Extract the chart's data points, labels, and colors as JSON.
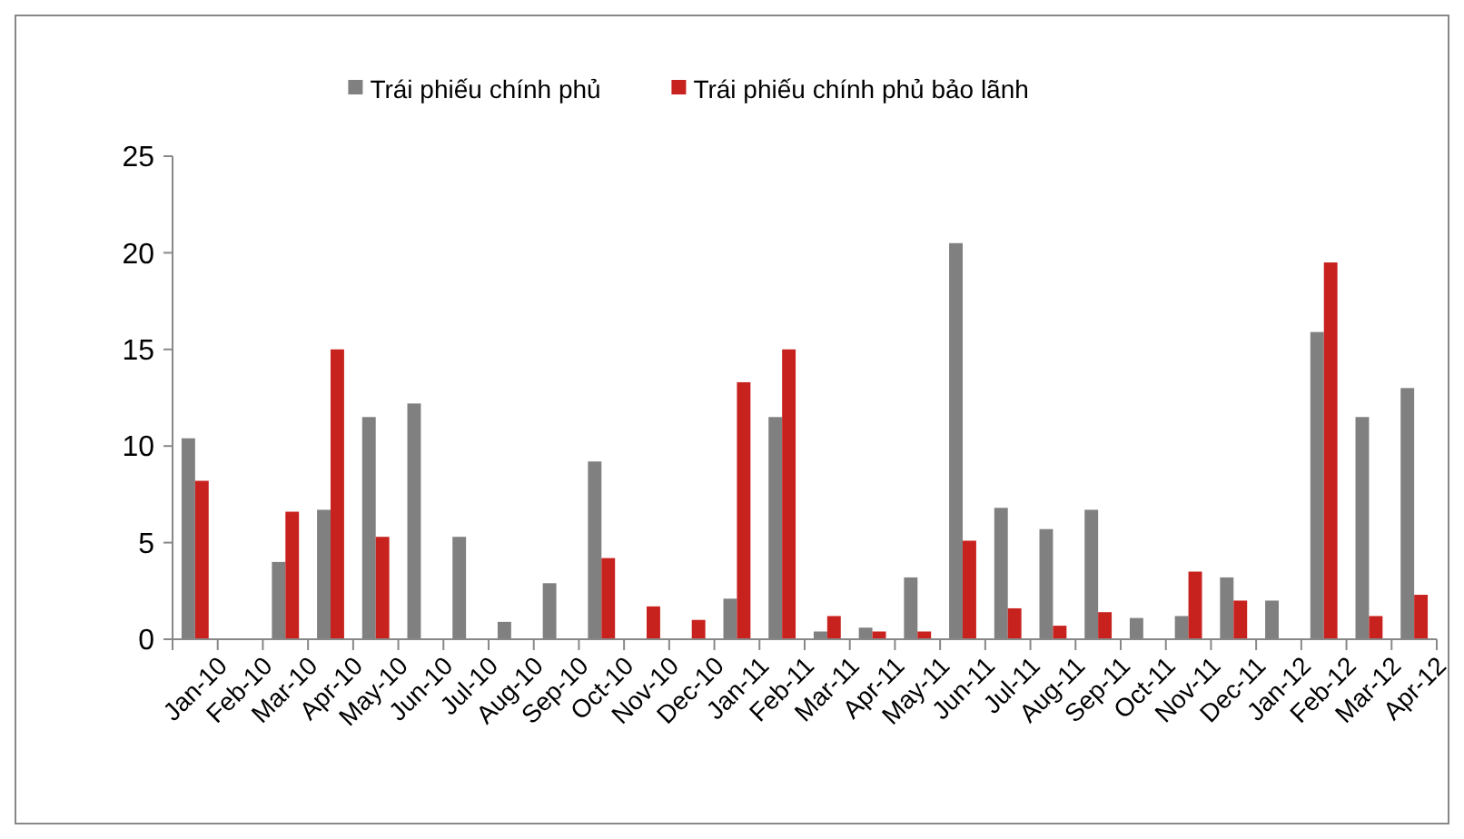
{
  "chart_data": {
    "type": "bar",
    "categories": [
      "Jan-10",
      "Feb-10",
      "Mar-10",
      "Apr-10",
      "May-10",
      "Jun-10",
      "Jul-10",
      "Aug-10",
      "Sep-10",
      "Oct-10",
      "Nov-10",
      "Dec-10",
      "Jan-11",
      "Feb-11",
      "Mar-11",
      "Apr-11",
      "May-11",
      "Jun-11",
      "Jul-11",
      "Aug-11",
      "Sep-11",
      "Oct-11",
      "Nov-11",
      "Dec-11",
      "Jan-12",
      "Feb-12",
      "Mar-12",
      "Apr-12"
    ],
    "series": [
      {
        "name": "Trái phiếu chính phủ",
        "color": "#808080",
        "values": [
          10.4,
          null,
          4.0,
          6.7,
          11.5,
          12.2,
          5.3,
          0.9,
          2.9,
          9.2,
          null,
          null,
          2.1,
          11.5,
          0.4,
          0.6,
          3.2,
          20.5,
          6.8,
          5.7,
          6.7,
          1.1,
          1.2,
          3.2,
          2.0,
          15.9,
          11.5,
          13.0
        ]
      },
      {
        "name": "Trái phiếu chính phủ bảo lãnh",
        "color": "#c8221f",
        "values": [
          8.2,
          null,
          6.6,
          15.0,
          5.3,
          null,
          null,
          null,
          null,
          4.2,
          1.7,
          1.0,
          13.3,
          15.0,
          1.2,
          0.4,
          0.4,
          5.1,
          1.6,
          0.7,
          1.4,
          null,
          3.5,
          2.0,
          null,
          19.5,
          1.2,
          2.3
        ]
      }
    ],
    "ylim": [
      0,
      25
    ],
    "yticks": [
      0,
      5,
      10,
      15,
      20,
      25
    ],
    "grid": false,
    "legend": "top"
  }
}
